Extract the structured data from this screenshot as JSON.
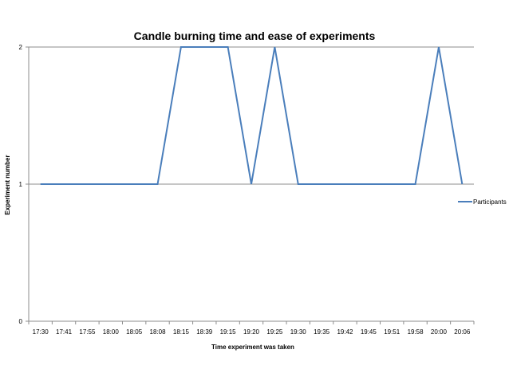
{
  "chart_data": {
    "type": "line",
    "title": "Candle burning time and ease of experiments",
    "xlabel": "Time experiment was taken",
    "ylabel": "Experiment number",
    "categories": [
      "17:30",
      "17:41",
      "17:55",
      "18:00",
      "18:05",
      "18:08",
      "18:15",
      "18:39",
      "19:15",
      "19:20",
      "19:25",
      "19:30",
      "19:35",
      "19:42",
      "19:45",
      "19:51",
      "19:58",
      "20:00",
      "20:06"
    ],
    "series": [
      {
        "name": "Participants",
        "values": [
          1,
          1,
          1,
          1,
          1,
          1,
          2,
          2,
          2,
          1,
          2,
          1,
          1,
          1,
          1,
          1,
          1,
          2,
          1
        ],
        "color": "#4A7EBB"
      }
    ],
    "ylim": [
      0,
      2
    ],
    "yticks": [
      0,
      1,
      2
    ],
    "grid": true,
    "legend": "right"
  }
}
